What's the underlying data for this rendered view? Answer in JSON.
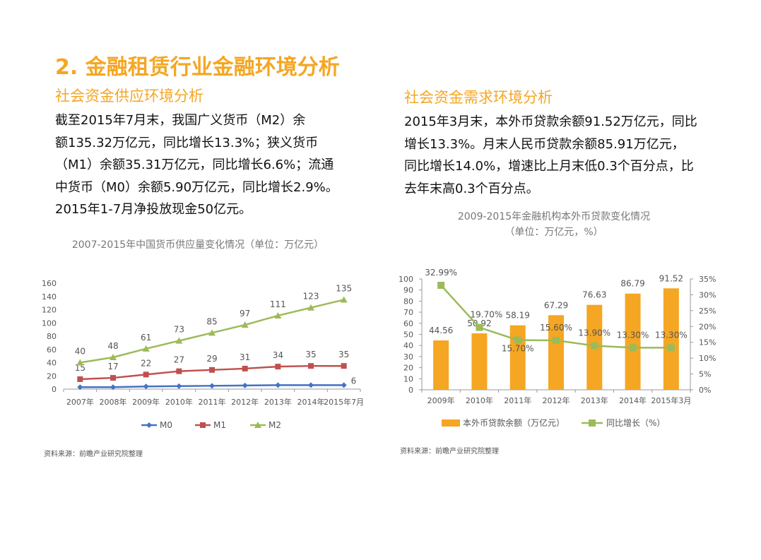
{
  "page": {
    "title": "2. 金融租赁行业金融环境分析",
    "left": {
      "heading": "社会资金供应环境分析",
      "paragraph": [
        "截至2015年7月末，我国广义货币（M2）余",
        "额135.32万亿元，同比增长13.3%；狭义货币",
        "（M1）余额35.31万亿元，同比增长6.6%；流通",
        "中货币（M0）余额5.90万亿元，同比增长2.9%。",
        "2015年1-7月净投放现金50亿元。"
      ],
      "chart_title": "2007-2015年中国货币供应量变化情况（单位：万亿元）",
      "source": "资料来源：前瞻产业研究院整理"
    },
    "right": {
      "heading": "社会资金需求环境分析",
      "paragraph": [
        "2015年3月末，本外币贷款余额91.52万亿元，同比",
        "增长13.3%。月末人民币贷款余额85.91万亿元，",
        "同比增长14.0%，增速比上月末低0.3个百分点，比",
        "去年末高0.3个百分点。"
      ],
      "chart_title_line1": "2009-2015年金融机构本外币贷款变化情况",
      "chart_title_line2": "（单位：万亿元，%）",
      "source": "资料来源：前瞻产业研究院整理"
    }
  },
  "chart_data": [
    {
      "type": "line",
      "categories": [
        "2007年",
        "2008年",
        "2009年",
        "2010年",
        "2011年",
        "2012年",
        "2013年",
        "2014年",
        "2015年7月"
      ],
      "series": [
        {
          "name": "M0",
          "values": [
            3,
            3,
            4,
            4.5,
            5,
            5.5,
            6,
            6,
            6
          ],
          "labels": [
            null,
            null,
            null,
            null,
            null,
            null,
            null,
            null,
            "6"
          ],
          "color": "#4472c4",
          "marker": "diamond"
        },
        {
          "name": "M1",
          "values": [
            15,
            17,
            22,
            27,
            29,
            31,
            34,
            35,
            35
          ],
          "labels": [
            "15",
            "17",
            "22",
            "27",
            "29",
            "31",
            "34",
            "35",
            "35"
          ],
          "color": "#c0504d",
          "marker": "square"
        },
        {
          "name": "M2",
          "values": [
            40,
            48,
            61,
            73,
            85,
            97,
            111,
            123,
            135
          ],
          "labels": [
            "40",
            "48",
            "61",
            "73",
            "85",
            "97",
            "111",
            "123",
            "135"
          ],
          "color": "#9bbb59",
          "marker": "triangle"
        }
      ],
      "ylim": [
        0,
        160
      ],
      "yticks": [
        "0",
        "20",
        "40",
        "60",
        "80",
        "100",
        "120",
        "140",
        "160"
      ],
      "legend": "bottom"
    },
    {
      "type": "bar",
      "categories": [
        "2009年",
        "2010年",
        "2011年",
        "2012年",
        "2013年",
        "2014年",
        "2015年3月"
      ],
      "bar_series": {
        "name": "本外币贷款余额（万亿元）",
        "values": [
          44.56,
          50.92,
          58.19,
          67.29,
          76.63,
          86.79,
          91.52
        ],
        "labels": [
          "44.56",
          "50.92",
          "58.19",
          "67.29",
          "76.63",
          "86.79",
          "91.52"
        ],
        "color": "#f5a623"
      },
      "line_series": {
        "name": "同比增长（%）",
        "values": [
          32.99,
          19.7,
          15.7,
          15.6,
          13.9,
          13.3,
          13.3
        ],
        "labels": [
          "32.99%",
          "19.70%",
          "15.70%",
          "15.60%",
          "13.90%",
          "13.30%",
          "13.30%"
        ],
        "color": "#9bbb59"
      },
      "ylim_left": [
        0,
        100
      ],
      "yticks_left": [
        "0",
        "10",
        "20",
        "30",
        "40",
        "50",
        "60",
        "70",
        "80",
        "90",
        "100"
      ],
      "ylim_right": [
        0,
        35
      ],
      "yticks_right": [
        "0%",
        "5%",
        "10%",
        "15%",
        "20%",
        "25%",
        "30%",
        "35%"
      ],
      "legend": "bottom"
    }
  ]
}
